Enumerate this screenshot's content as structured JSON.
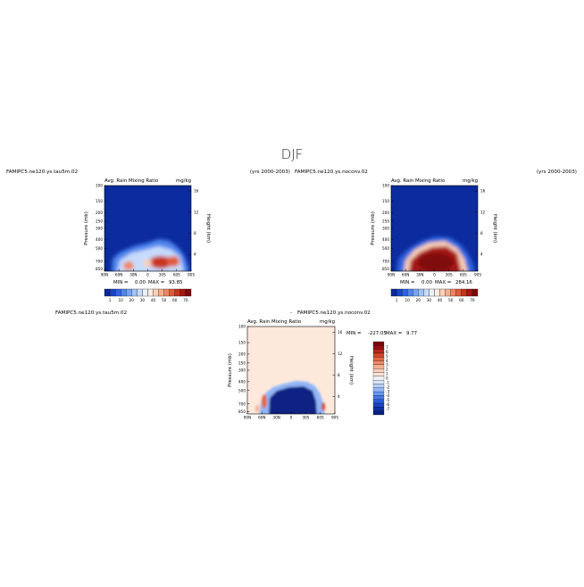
{
  "figure": {
    "title": "DJF"
  },
  "colors": {
    "deep_blue": "#0a2aa3",
    "neutral": "#fce9dc",
    "deep_red": "#8b0a0a",
    "mixing_ratio_scale": [
      "#0b2b9e",
      "#1746c8",
      "#2f63dd",
      "#4f85ee",
      "#76a4f5",
      "#9fc3fa",
      "#c7dcfc",
      "#e9f0fc",
      "#fdece2",
      "#fbd0b8",
      "#f6ad8d",
      "#ee8560",
      "#e05a3a",
      "#c9341f",
      "#a51613",
      "#800808"
    ],
    "difference_scale": [
      "#0a2082",
      "#0f2fa4",
      "#1742c4",
      "#2a5bd9",
      "#4578e8",
      "#6a97f1",
      "#91b6f7",
      "#b7d0fa",
      "#dbe6fb",
      "#f1f0f5",
      "#fbe3d8",
      "#f9ccb6",
      "#f5ad8f",
      "#ee8b69",
      "#e36746",
      "#d14328",
      "#b8261a",
      "#981010",
      "#7a0505"
    ]
  },
  "chart_data": [
    {
      "type": "heatmap",
      "case": "FAMIPC5.ne120.ys.tau5m.02",
      "period": "(yrs 2000-2003)",
      "title": "Avg. Rain Mixing Ratio",
      "units": "mg/kg",
      "xlabel": "",
      "ylabel": "Pressure (mb)",
      "y2label": "Height (km)",
      "x_ticks": [
        "90N",
        "60N",
        "30N",
        "0",
        "30S",
        "60S",
        "90S"
      ],
      "y_ticks": [
        "100",
        "150",
        "200",
        "250",
        "300",
        "400",
        "500",
        "700",
        "850"
      ],
      "y2_ticks": [
        "16",
        "12",
        "8",
        "4"
      ],
      "min_label": "MIN =",
      "min_value": "0.00",
      "max_label": "MAX =",
      "max_value": "93.85",
      "colorbar_ticks": [
        "1",
        "10",
        "20",
        "30",
        "40",
        "50",
        "60",
        "70"
      ],
      "features": [
        {
          "lat": -20,
          "p": 760,
          "value": 70
        },
        {
          "lat": -40,
          "p": 720,
          "value": 62
        },
        {
          "lat": 55,
          "p": 790,
          "value": 58
        },
        {
          "lat": 5,
          "p": 680,
          "value": 42
        }
      ]
    },
    {
      "type": "heatmap",
      "case": "FAMIPC5.ne120.ys.noconv.02",
      "period": "(yrs 2000-2003)",
      "title": "Avg. Rain Mixing Ratio",
      "units": "mg/kg",
      "xlabel": "",
      "ylabel": "Pressure (mb)",
      "y2label": "Height (km)",
      "x_ticks": [
        "90N",
        "60N",
        "30N",
        "0",
        "30S",
        "60S",
        "90S"
      ],
      "y_ticks": [
        "100",
        "150",
        "200",
        "250",
        "300",
        "400",
        "500",
        "700",
        "850"
      ],
      "y2_ticks": [
        "16",
        "12",
        "8",
        "4"
      ],
      "min_label": "MIN =",
      "min_value": "0.00",
      "max_label": "MAX =",
      "max_value": "284.16",
      "colorbar_ticks": [
        "1",
        "10",
        "20",
        "30",
        "40",
        "50",
        "60",
        "70"
      ],
      "features": [
        {
          "lat": -10,
          "p": 730,
          "value": 75
        },
        {
          "lat": 25,
          "p": 700,
          "value": 72
        }
      ]
    },
    {
      "type": "heatmap",
      "case": "FAMIPC5.ne120.ys.tau5m.02",
      "title_prefix": "-",
      "title_case": "FAMIPC5.ne120.ys.noconv.02",
      "title": "Avg. Rain Mixing Ratio",
      "units": "mg/kg",
      "xlabel": "",
      "ylabel": "Pressure (mb)",
      "y2label": "Height (km)",
      "x_ticks": [
        "90N",
        "60N",
        "30N",
        "0",
        "30S",
        "60S",
        "90S"
      ],
      "y_ticks": [
        "100",
        "150",
        "200",
        "250",
        "300",
        "400",
        "500",
        "700",
        "850"
      ],
      "y2_ticks": [
        "16",
        "12",
        "8",
        "4"
      ],
      "min_label": "MIN =",
      "min_value": "-227.05",
      "max_label": "MAX =",
      "max_value": "9.77",
      "colorbar_ticks": [
        "7",
        "6",
        "5",
        "4",
        "3",
        "2",
        "1",
        "0",
        "-1",
        "-2",
        "-3",
        "-4",
        "-5",
        "-6",
        "-7"
      ]
    }
  ]
}
